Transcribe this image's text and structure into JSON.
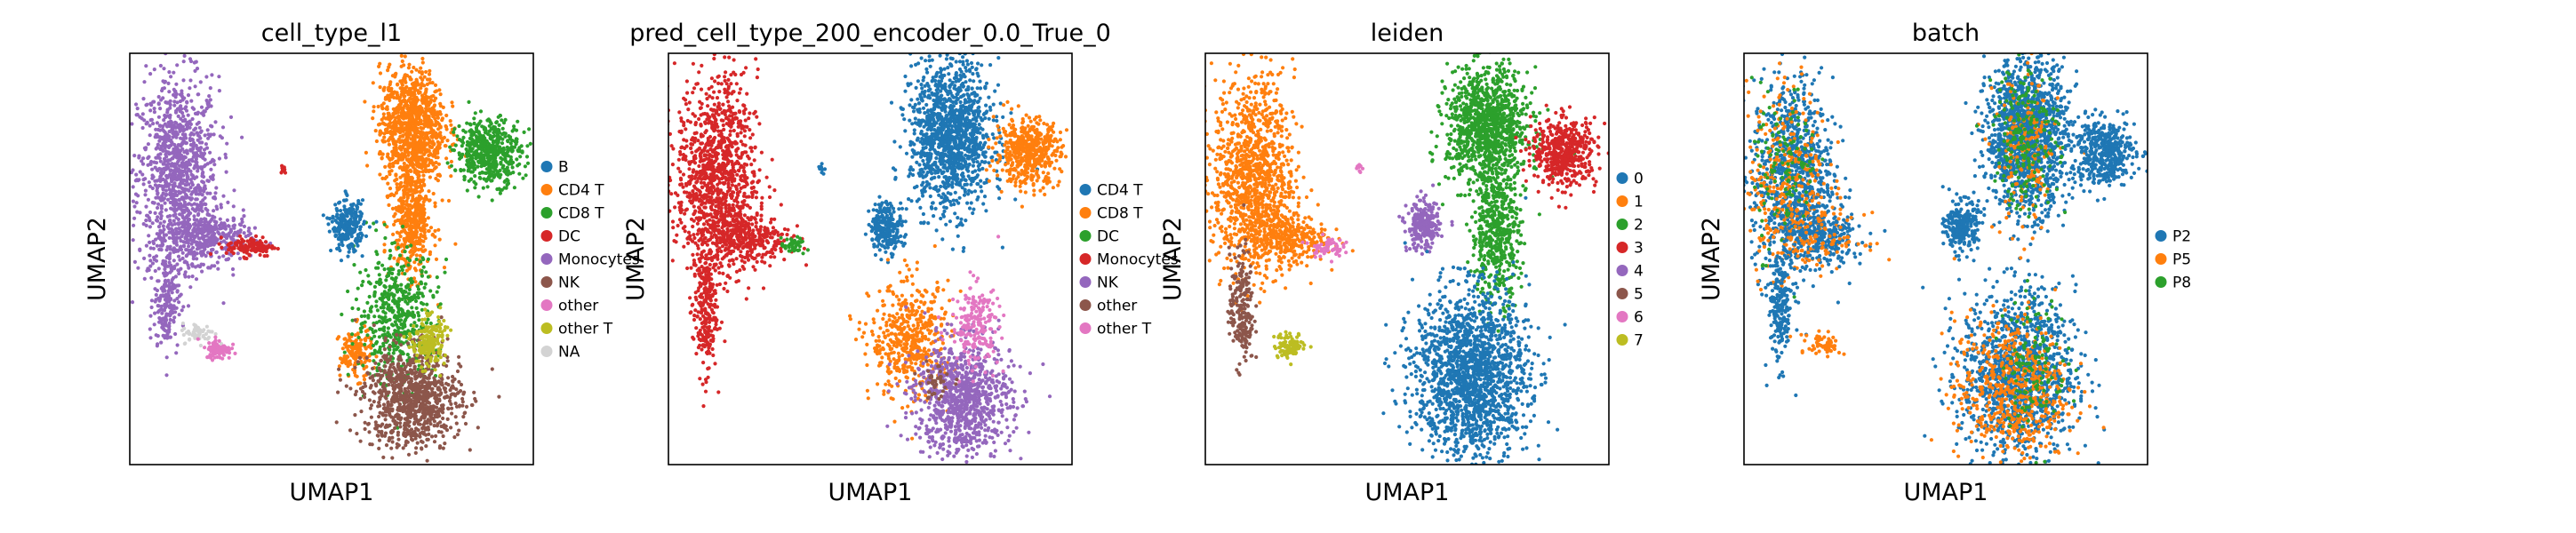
{
  "chart_data": [
    {
      "type": "scatter",
      "title": "cell_type_l1",
      "xlabel": "UMAP1",
      "ylabel": "UMAP2",
      "legend_position": "right",
      "grid": false,
      "legend": [
        {
          "label": "B",
          "color": "#1f77b4"
        },
        {
          "label": "CD4 T",
          "color": "#ff7f0e"
        },
        {
          "label": "CD8 T",
          "color": "#2ca02c"
        },
        {
          "label": "DC",
          "color": "#d62728"
        },
        {
          "label": "Monocytes",
          "color": "#9467bd"
        },
        {
          "label": "NK",
          "color": "#8c564b"
        },
        {
          "label": "other",
          "color": "#e377c2"
        },
        {
          "label": "other T",
          "color": "#bcbd22"
        },
        {
          "label": "NA",
          "color": "#d3d3d3"
        }
      ],
      "clusters": [
        {
          "cat": "Monocytes",
          "x": 0.12,
          "y": 0.7,
          "sx": 0.05,
          "sy": 0.12,
          "n": 1100
        },
        {
          "cat": "Monocytes",
          "x": 0.2,
          "y": 0.55,
          "sx": 0.05,
          "sy": 0.03,
          "n": 300
        },
        {
          "cat": "Monocytes",
          "x": 0.09,
          "y": 0.4,
          "sx": 0.015,
          "sy": 0.06,
          "n": 200
        },
        {
          "cat": "DC",
          "x": 0.3,
          "y": 0.53,
          "sx": 0.03,
          "sy": 0.012,
          "n": 120
        },
        {
          "cat": "DC",
          "x": 0.38,
          "y": 0.72,
          "sx": 0.004,
          "sy": 0.006,
          "n": 10
        },
        {
          "cat": "NA",
          "x": 0.17,
          "y": 0.32,
          "sx": 0.02,
          "sy": 0.012,
          "n": 60
        },
        {
          "cat": "other",
          "x": 0.22,
          "y": 0.28,
          "sx": 0.015,
          "sy": 0.012,
          "n": 90
        },
        {
          "cat": "CD4 T",
          "x": 0.7,
          "y": 0.82,
          "sx": 0.04,
          "sy": 0.07,
          "n": 1000
        },
        {
          "cat": "CD4 T",
          "x": 0.7,
          "y": 0.6,
          "sx": 0.025,
          "sy": 0.07,
          "n": 500
        },
        {
          "cat": "CD4 T",
          "x": 0.56,
          "y": 0.27,
          "sx": 0.02,
          "sy": 0.03,
          "n": 150
        },
        {
          "cat": "CD8 T",
          "x": 0.89,
          "y": 0.76,
          "sx": 0.04,
          "sy": 0.04,
          "n": 500
        },
        {
          "cat": "CD8 T",
          "x": 0.66,
          "y": 0.36,
          "sx": 0.05,
          "sy": 0.08,
          "n": 500
        },
        {
          "cat": "B",
          "x": 0.54,
          "y": 0.58,
          "sx": 0.02,
          "sy": 0.03,
          "n": 250
        },
        {
          "cat": "NK",
          "x": 0.7,
          "y": 0.16,
          "sx": 0.06,
          "sy": 0.06,
          "n": 900
        },
        {
          "cat": "other T",
          "x": 0.74,
          "y": 0.3,
          "sx": 0.02,
          "sy": 0.03,
          "n": 200
        }
      ]
    },
    {
      "type": "scatter",
      "title": "pred_cell_type_200_encoder_0.0_True_0",
      "xlabel": "UMAP1",
      "ylabel": "UMAP2",
      "legend_position": "right",
      "grid": false,
      "legend": [
        {
          "label": "CD4 T",
          "color": "#1f77b4"
        },
        {
          "label": "CD8 T",
          "color": "#ff7f0e"
        },
        {
          "label": "DC",
          "color": "#2ca02c"
        },
        {
          "label": "Monocytes",
          "color": "#d62728"
        },
        {
          "label": "NK",
          "color": "#9467bd"
        },
        {
          "label": "other",
          "color": "#8c564b"
        },
        {
          "label": "other T",
          "color": "#e377c2"
        }
      ],
      "clusters": [
        {
          "cat": "Monocytes",
          "x": 0.12,
          "y": 0.7,
          "sx": 0.05,
          "sy": 0.12,
          "n": 1100
        },
        {
          "cat": "Monocytes",
          "x": 0.2,
          "y": 0.55,
          "sx": 0.05,
          "sy": 0.03,
          "n": 300
        },
        {
          "cat": "Monocytes",
          "x": 0.09,
          "y": 0.38,
          "sx": 0.015,
          "sy": 0.08,
          "n": 250
        },
        {
          "cat": "DC",
          "x": 0.31,
          "y": 0.53,
          "sx": 0.015,
          "sy": 0.01,
          "n": 40
        },
        {
          "cat": "CD4 T",
          "x": 0.7,
          "y": 0.8,
          "sx": 0.05,
          "sy": 0.09,
          "n": 1300
        },
        {
          "cat": "CD4 T",
          "x": 0.54,
          "y": 0.58,
          "sx": 0.02,
          "sy": 0.03,
          "n": 250
        },
        {
          "cat": "CD4 T",
          "x": 0.38,
          "y": 0.72,
          "sx": 0.004,
          "sy": 0.006,
          "n": 10
        },
        {
          "cat": "CD8 T",
          "x": 0.89,
          "y": 0.76,
          "sx": 0.04,
          "sy": 0.04,
          "n": 500
        },
        {
          "cat": "CD8 T",
          "x": 0.6,
          "y": 0.3,
          "sx": 0.05,
          "sy": 0.07,
          "n": 500
        },
        {
          "cat": "NK",
          "x": 0.73,
          "y": 0.16,
          "sx": 0.06,
          "sy": 0.07,
          "n": 900
        },
        {
          "cat": "other T",
          "x": 0.76,
          "y": 0.34,
          "sx": 0.03,
          "sy": 0.05,
          "n": 200
        },
        {
          "cat": "other",
          "x": 0.66,
          "y": 0.2,
          "sx": 0.02,
          "sy": 0.02,
          "n": 40
        }
      ]
    },
    {
      "type": "scatter",
      "title": "leiden",
      "xlabel": "UMAP1",
      "ylabel": "UMAP2",
      "legend_position": "right",
      "grid": false,
      "legend": [
        {
          "label": "0",
          "color": "#1f77b4"
        },
        {
          "label": "1",
          "color": "#ff7f0e"
        },
        {
          "label": "2",
          "color": "#2ca02c"
        },
        {
          "label": "3",
          "color": "#d62728"
        },
        {
          "label": "4",
          "color": "#9467bd"
        },
        {
          "label": "5",
          "color": "#8c564b"
        },
        {
          "label": "6",
          "color": "#e377c2"
        },
        {
          "label": "7",
          "color": "#bcbd22"
        }
      ],
      "clusters": [
        {
          "cat": "1",
          "x": 0.12,
          "y": 0.7,
          "sx": 0.05,
          "sy": 0.12,
          "n": 1100
        },
        {
          "cat": "1",
          "x": 0.2,
          "y": 0.55,
          "sx": 0.05,
          "sy": 0.03,
          "n": 300
        },
        {
          "cat": "5",
          "x": 0.09,
          "y": 0.38,
          "sx": 0.015,
          "sy": 0.07,
          "n": 220
        },
        {
          "cat": "7",
          "x": 0.21,
          "y": 0.29,
          "sx": 0.02,
          "sy": 0.015,
          "n": 100
        },
        {
          "cat": "6",
          "x": 0.3,
          "y": 0.53,
          "sx": 0.02,
          "sy": 0.012,
          "n": 60
        },
        {
          "cat": "6",
          "x": 0.38,
          "y": 0.72,
          "sx": 0.004,
          "sy": 0.006,
          "n": 10
        },
        {
          "cat": "2",
          "x": 0.7,
          "y": 0.82,
          "sx": 0.05,
          "sy": 0.07,
          "n": 1100
        },
        {
          "cat": "2",
          "x": 0.72,
          "y": 0.56,
          "sx": 0.03,
          "sy": 0.08,
          "n": 500
        },
        {
          "cat": "3",
          "x": 0.89,
          "y": 0.76,
          "sx": 0.04,
          "sy": 0.04,
          "n": 500
        },
        {
          "cat": "4",
          "x": 0.54,
          "y": 0.58,
          "sx": 0.02,
          "sy": 0.03,
          "n": 250
        },
        {
          "cat": "0",
          "x": 0.66,
          "y": 0.22,
          "sx": 0.07,
          "sy": 0.1,
          "n": 1700
        }
      ]
    },
    {
      "type": "scatter",
      "title": "batch",
      "xlabel": "UMAP1",
      "ylabel": "UMAP2",
      "legend_position": "right",
      "grid": false,
      "legend": [
        {
          "label": "P2",
          "color": "#1f77b4"
        },
        {
          "label": "P5",
          "color": "#ff7f0e"
        },
        {
          "label": "P8",
          "color": "#2ca02c"
        }
      ],
      "clusters": [
        {
          "cat": "P2",
          "x": 0.12,
          "y": 0.7,
          "sx": 0.05,
          "sy": 0.12,
          "n": 900
        },
        {
          "cat": "P5",
          "x": 0.11,
          "y": 0.68,
          "sx": 0.05,
          "sy": 0.12,
          "n": 350
        },
        {
          "cat": "P8",
          "x": 0.1,
          "y": 0.72,
          "sx": 0.04,
          "sy": 0.1,
          "n": 120
        },
        {
          "cat": "P2",
          "x": 0.2,
          "y": 0.55,
          "sx": 0.05,
          "sy": 0.03,
          "n": 250
        },
        {
          "cat": "P5",
          "x": 0.2,
          "y": 0.55,
          "sx": 0.05,
          "sy": 0.03,
          "n": 80
        },
        {
          "cat": "P2",
          "x": 0.09,
          "y": 0.38,
          "sx": 0.015,
          "sy": 0.07,
          "n": 200
        },
        {
          "cat": "P5",
          "x": 0.2,
          "y": 0.29,
          "sx": 0.02,
          "sy": 0.015,
          "n": 60
        },
        {
          "cat": "P2",
          "x": 0.7,
          "y": 0.8,
          "sx": 0.05,
          "sy": 0.09,
          "n": 1400
        },
        {
          "cat": "P5",
          "x": 0.7,
          "y": 0.75,
          "sx": 0.04,
          "sy": 0.1,
          "n": 150
        },
        {
          "cat": "P8",
          "x": 0.7,
          "y": 0.8,
          "sx": 0.04,
          "sy": 0.09,
          "n": 200
        },
        {
          "cat": "P2",
          "x": 0.89,
          "y": 0.76,
          "sx": 0.04,
          "sy": 0.04,
          "n": 450
        },
        {
          "cat": "P2",
          "x": 0.54,
          "y": 0.58,
          "sx": 0.02,
          "sy": 0.03,
          "n": 250
        },
        {
          "cat": "P2",
          "x": 0.68,
          "y": 0.22,
          "sx": 0.07,
          "sy": 0.1,
          "n": 1300
        },
        {
          "cat": "P5",
          "x": 0.66,
          "y": 0.18,
          "sx": 0.07,
          "sy": 0.09,
          "n": 550
        },
        {
          "cat": "P8",
          "x": 0.72,
          "y": 0.25,
          "sx": 0.04,
          "sy": 0.08,
          "n": 120
        }
      ]
    }
  ]
}
